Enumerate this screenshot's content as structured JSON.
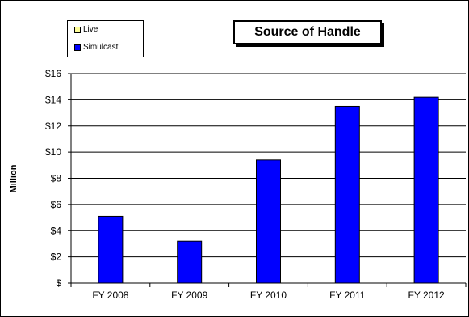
{
  "chart_data": {
    "type": "bar",
    "title": "Source of Handle",
    "ylabel": "Million",
    "xlabel": "",
    "categories": [
      "FY 2008",
      "FY 2009",
      "FY 2010",
      "FY 2011",
      "FY 2012"
    ],
    "series": [
      {
        "name": "Live",
        "values": [
          0,
          0,
          0,
          0,
          0
        ],
        "color": "#FFFF99"
      },
      {
        "name": "Simulcast",
        "values": [
          5.1,
          3.2,
          9.4,
          13.5,
          14.2
        ],
        "color": "#0000FF"
      }
    ],
    "ylim": [
      0,
      16
    ],
    "yticks": [
      0,
      2,
      4,
      6,
      8,
      10,
      12,
      14,
      16
    ],
    "ytick_labels": [
      "$",
      "$2",
      "$4",
      "$6",
      "$8",
      "$10",
      "$12",
      "$14",
      "$16"
    ],
    "grid": true,
    "legend_position": "top-left"
  }
}
